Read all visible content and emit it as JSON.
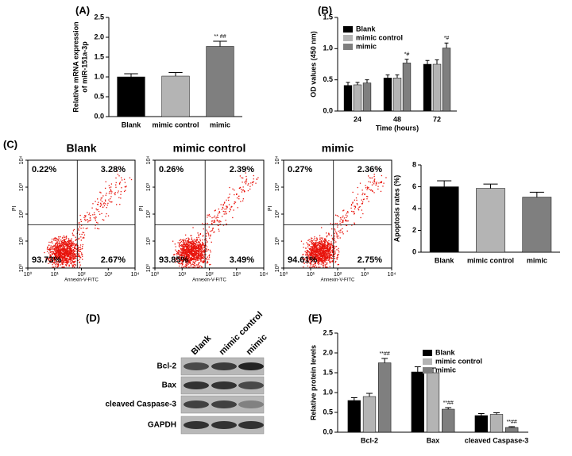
{
  "chart_data": [
    {
      "type": "bar",
      "panel_label": "(A)",
      "ylabel": [
        "Relative mRNA expression",
        "of miR-151a-3p"
      ],
      "categories": [
        "Blank",
        "mimic control",
        "mimic"
      ],
      "values": [
        1.0,
        1.02,
        1.77
      ],
      "errors": [
        0.08,
        0.09,
        0.13
      ],
      "colors": [
        "#000000",
        "#b4b4b4",
        "#7f7f7f"
      ],
      "annotations": [
        null,
        null,
        "** ##"
      ],
      "ylim": [
        0,
        2.5
      ],
      "yticks": [
        {
          "value": 0,
          "label": "0.0"
        },
        0.5,
        {
          "value": 1,
          "label": "1.0"
        },
        1.5,
        {
          "value": 2,
          "label": "2.0"
        },
        2.5
      ]
    },
    {
      "type": "bar",
      "panel_label": "(B)",
      "ylabel": "OD values (450 nm)",
      "xlabel": "Time (hours)",
      "categories": [
        "24",
        "48",
        "72"
      ],
      "series": [
        {
          "name": "Blank",
          "color": "#000000",
          "values": [
            0.41,
            0.53,
            0.75
          ],
          "errors": [
            0.05,
            0.05,
            0.06
          ],
          "annotations": [
            null,
            null,
            null
          ]
        },
        {
          "name": "mimic control",
          "color": "#b4b4b4",
          "values": [
            0.42,
            0.53,
            0.75
          ],
          "errors": [
            0.04,
            0.05,
            0.07
          ],
          "annotations": [
            null,
            null,
            null
          ]
        },
        {
          "name": "mimic",
          "color": "#7f7f7f",
          "values": [
            0.45,
            0.77,
            1.01
          ],
          "errors": [
            0.05,
            0.06,
            0.08
          ],
          "annotations": [
            null,
            "*#",
            "*#"
          ]
        }
      ],
      "ylim": [
        0,
        1.5
      ],
      "yticks": [
        {
          "value": 0,
          "label": "0.0"
        },
        0.5,
        {
          "value": 1,
          "label": "1.0"
        },
        1.5
      ]
    },
    {
      "type": "scatter",
      "panel_label": "(C)",
      "title": "Blank",
      "xlabel": "Annexin-V-FITC",
      "ylabel": "PI",
      "log_scale": true,
      "values": [
        0.22,
        3.28,
        93.73,
        2.67
      ],
      "value_labels": [
        "0.22%",
        "3.28%",
        "93.73%",
        "2.67%"
      ],
      "gate": {
        "x": 70,
        "y": 40
      },
      "xlim": [
        1,
        10000
      ],
      "ylim": [
        1,
        10000
      ],
      "xticks": [
        {
          "value": 1,
          "label": "10⁰"
        },
        {
          "value": 10,
          "label": "10¹"
        },
        {
          "value": 100,
          "label": "10²"
        },
        {
          "value": 1000,
          "label": "10³"
        },
        {
          "value": 10000,
          "label": "10⁴"
        }
      ],
      "yticks": [
        {
          "value": 1,
          "label": "10⁰"
        },
        {
          "value": 10,
          "label": "10¹"
        },
        {
          "value": 100,
          "label": "10²"
        },
        {
          "value": 1000,
          "label": "10³"
        },
        {
          "value": 10000,
          "label": "10⁴"
        }
      ]
    },
    {
      "type": "scatter",
      "title": "mimic control",
      "xlabel": "Annexin-V-FITC",
      "ylabel": "PI",
      "log_scale": true,
      "values": [
        0.26,
        2.39,
        93.85,
        3.49
      ],
      "value_labels": [
        "0.26%",
        "2.39%",
        "93.85%",
        "3.49%"
      ],
      "gate": {
        "x": 70,
        "y": 40
      },
      "xlim": [
        1,
        10000
      ],
      "ylim": [
        1,
        10000
      ],
      "xticks": [
        {
          "value": 1,
          "label": "10⁰"
        },
        {
          "value": 10,
          "label": "10¹"
        },
        {
          "value": 100,
          "label": "10²"
        },
        {
          "value": 1000,
          "label": "10³"
        },
        {
          "value": 10000,
          "label": "10⁴"
        }
      ],
      "yticks": [
        {
          "value": 1,
          "label": "10⁰"
        },
        {
          "value": 10,
          "label": "10¹"
        },
        {
          "value": 100,
          "label": "10²"
        },
        {
          "value": 1000,
          "label": "10³"
        },
        {
          "value": 10000,
          "label": "10⁴"
        }
      ]
    },
    {
      "type": "scatter",
      "title": "mimic",
      "xlabel": "Annexin-V-FITC",
      "ylabel": "PI",
      "log_scale": true,
      "values": [
        0.27,
        2.36,
        94.61,
        2.75
      ],
      "value_labels": [
        "0.27%",
        "2.36%",
        "94.61%",
        "2.75%"
      ],
      "gate": {
        "x": 70,
        "y": 40
      },
      "xlim": [
        1,
        10000
      ],
      "ylim": [
        1,
        10000
      ],
      "xticks": [
        {
          "value": 1,
          "label": "10⁰"
        },
        {
          "value": 10,
          "label": "10¹"
        },
        {
          "value": 100,
          "label": "10²"
        },
        {
          "value": 1000,
          "label": "10³"
        },
        {
          "value": 10000,
          "label": "10⁴"
        }
      ],
      "yticks": [
        {
          "value": 1,
          "label": "10⁰"
        },
        {
          "value": 10,
          "label": "10¹"
        },
        {
          "value": 100,
          "label": "10²"
        },
        {
          "value": 1000,
          "label": "10³"
        },
        {
          "value": 10000,
          "label": "10⁴"
        }
      ]
    },
    {
      "type": "bar",
      "ylabel": "Apoptosis rates (%)",
      "categories": [
        "Blank",
        "mimic control",
        "mimic"
      ],
      "values": [
        6.0,
        5.85,
        5.05
      ],
      "errors": [
        0.55,
        0.4,
        0.45
      ],
      "colors": [
        "#000000",
        "#b4b4b4",
        "#7f7f7f"
      ],
      "annotations": [
        null,
        null,
        null
      ],
      "ylim": [
        0,
        8
      ],
      "yticks": [
        0,
        2,
        4,
        6,
        8
      ]
    },
    {
      "type": "blot",
      "panel_label": "(D)",
      "columns": [
        "Blank",
        "mimic control",
        "mimic"
      ],
      "rows": [
        "Bcl-2",
        "Bax",
        "cleaved Caspase-3",
        "GAPDH"
      ]
    },
    {
      "type": "bar",
      "panel_label": "(E)",
      "ylabel": "Relative protein levels",
      "categories": [
        "Bcl-2",
        "Bax",
        "cleaved Caspase-3"
      ],
      "series": [
        {
          "name": "Blank",
          "color": "#000000",
          "values": [
            0.8,
            1.52,
            0.42
          ],
          "errors": [
            0.07,
            0.13,
            0.05
          ],
          "annotations": [
            null,
            null,
            null
          ]
        },
        {
          "name": "mimic control",
          "color": "#b4b4b4",
          "values": [
            0.9,
            1.5,
            0.45
          ],
          "errors": [
            0.08,
            0.12,
            0.04
          ],
          "annotations": [
            null,
            null,
            null
          ]
        },
        {
          "name": "mimic",
          "color": "#7f7f7f",
          "values": [
            1.75,
            0.58,
            0.12
          ],
          "errors": [
            0.11,
            0.04,
            0.02
          ],
          "annotations": [
            "**##",
            "**##",
            "**##"
          ]
        }
      ],
      "ylim": [
        0,
        2.5
      ],
      "yticks": [
        {
          "value": 0,
          "label": "0.0"
        },
        0.5,
        {
          "value": 1,
          "label": "1.0"
        },
        1.5,
        {
          "value": 2,
          "label": "2.0"
        },
        2.5
      ]
    }
  ]
}
